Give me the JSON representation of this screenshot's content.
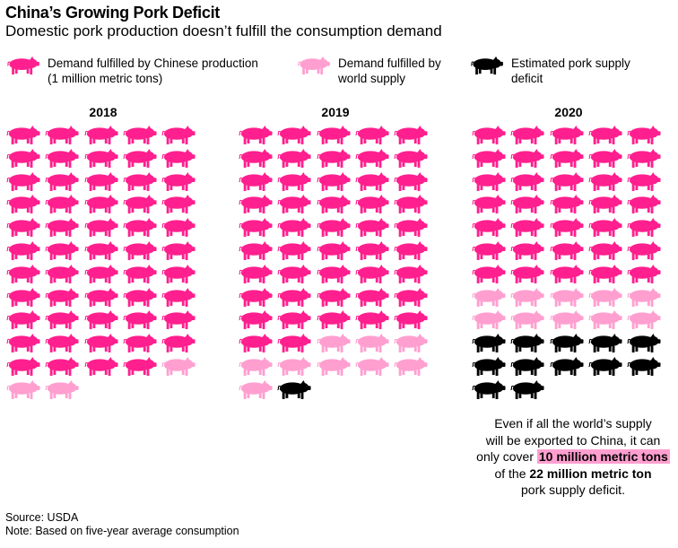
{
  "title": "China’s Growing Pork Deficit",
  "subtitle": "Domestic pork production doesn’t fulfill the consumption demand",
  "legend": [
    {
      "label_line1": "Demand fulfilled by Chinese production",
      "label_line2": "(1 million metric tons)",
      "color": "#ff1f8e"
    },
    {
      "label_line1": "Demand fulfilled by",
      "label_line2": "world supply",
      "color": "#ff9fd0"
    },
    {
      "label_line1": "Estimated pork supply",
      "label_line2": "deficit",
      "color": "#000000"
    }
  ],
  "chart_data": {
    "type": "pictogram",
    "unit": "1 million metric tons per pig icon",
    "icons_per_row": 5,
    "categories": [
      "2018",
      "2019",
      "2020"
    ],
    "series": [
      {
        "name": "Demand fulfilled by Chinese production",
        "color": "#ff1f8e",
        "values": [
          54,
          47,
          35
        ]
      },
      {
        "name": "Demand fulfilled by world supply",
        "color": "#ff9fd0",
        "values": [
          3,
          9,
          10
        ]
      },
      {
        "name": "Estimated pork supply deficit",
        "color": "#000000",
        "values": [
          0,
          1,
          12
        ]
      }
    ]
  },
  "annotation": {
    "line1": "Even if all the world’s supply",
    "line2": "will be exported to China, it can",
    "line3_pre": "only cover ",
    "line3_highlight": "10 million metric tons",
    "line4_pre": "of the ",
    "line4_bold": "22 million metric ton",
    "line5": "pork supply deficit."
  },
  "footer": {
    "source": "Source: USDA",
    "note": "Note: Based on five-year average consumption"
  }
}
